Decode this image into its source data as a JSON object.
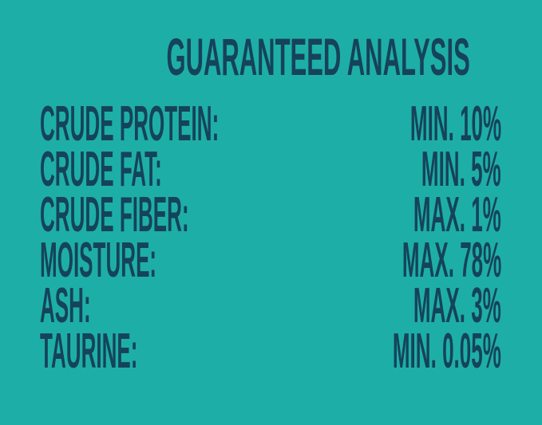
{
  "title": "GUARANTEED ANALYSIS",
  "colors": {
    "background": "#1eaea8",
    "text": "#15435a"
  },
  "rows": [
    {
      "label": "CRUDE PROTEIN:",
      "value": "MIN. 10%"
    },
    {
      "label": "CRUDE FAT:",
      "value": "MIN. 5%"
    },
    {
      "label": "CRUDE FIBER:",
      "value": "MAX. 1%"
    },
    {
      "label": "MOISTURE:",
      "value": "MAX. 78%"
    },
    {
      "label": "ASH:",
      "value": "MAX. 3%"
    },
    {
      "label": "TAURINE:",
      "value": "MIN. 0.05%"
    }
  ]
}
